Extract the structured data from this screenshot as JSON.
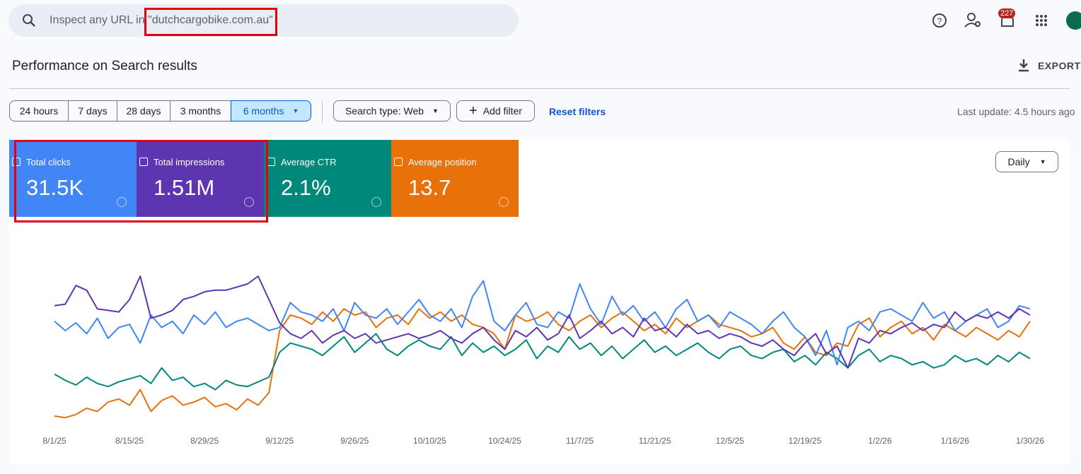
{
  "search": {
    "placeholder": "Inspect any URL in \"dutchcargobike.com.au\""
  },
  "header": {
    "notifications": "227",
    "title": "Performance on Search results",
    "export": "EXPORT"
  },
  "filters": {
    "ranges": [
      "24 hours",
      "7 days",
      "28 days",
      "3 months",
      "6 months"
    ],
    "search_type": "Search type: Web",
    "add_filter": "Add filter",
    "reset": "Reset filters",
    "last_update": "Last update: 4.5 hours ago"
  },
  "metrics": [
    "31.5K",
    "1.51M",
    "2.1%",
    "13.7"
  ],
  "granularity": "Daily",
  "chart_data": {
    "type": "line",
    "ylim": [
      0,
      100
    ],
    "categories": [
      "8/1/25",
      null,
      null,
      null,
      null,
      null,
      null,
      "8/15/25",
      null,
      null,
      null,
      null,
      null,
      null,
      "8/29/25",
      null,
      null,
      null,
      null,
      null,
      null,
      "9/12/25",
      null,
      null,
      null,
      null,
      null,
      null,
      "9/26/25",
      null,
      null,
      null,
      null,
      null,
      null,
      "10/10/25",
      null,
      null,
      null,
      null,
      null,
      null,
      "10/24/25",
      null,
      null,
      null,
      null,
      null,
      null,
      "11/7/25",
      null,
      null,
      null,
      null,
      null,
      null,
      "11/21/25",
      null,
      null,
      null,
      null,
      null,
      null,
      "12/5/25",
      null,
      null,
      null,
      null,
      null,
      null,
      "12/19/25",
      null,
      null,
      null,
      null,
      null,
      null,
      "1/2/26",
      null,
      null,
      null,
      null,
      null,
      null,
      "1/16/26",
      null,
      null,
      null,
      null,
      null,
      null,
      "1/30/26"
    ],
    "series": [
      {
        "name": "Total clicks",
        "color": "#4285f4",
        "values": [
          66,
          60,
          65,
          58,
          68,
          55,
          62,
          64,
          52,
          70,
          62,
          66,
          58,
          70,
          64,
          72,
          62,
          66,
          68,
          64,
          60,
          62,
          78,
          72,
          70,
          66,
          74,
          60,
          78,
          70,
          68,
          74,
          64,
          72,
          80,
          70,
          66,
          74,
          62,
          82,
          92,
          66,
          60,
          70,
          78,
          64,
          62,
          72,
          68,
          90,
          74,
          64,
          82,
          70,
          76,
          66,
          72,
          62,
          74,
          80,
          66,
          70,
          62,
          72,
          68,
          64,
          58,
          66,
          72,
          62,
          56,
          44,
          60,
          38,
          62,
          66,
          60,
          72,
          74,
          70,
          66,
          78,
          68,
          72,
          60,
          66,
          70,
          74,
          62,
          66,
          76,
          74
        ]
      },
      {
        "name": "Total impressions",
        "color": "#5e35b1",
        "values": [
          76,
          77,
          89,
          86,
          74,
          73,
          72,
          80,
          95,
          68,
          70,
          73,
          80,
          82,
          85,
          86,
          86,
          88,
          90,
          95,
          80,
          65,
          58,
          55,
          60,
          52,
          57,
          60,
          55,
          58,
          52,
          54,
          56,
          58,
          55,
          57,
          60,
          55,
          52,
          58,
          62,
          54,
          48,
          60,
          56,
          62,
          54,
          58,
          70,
          55,
          60,
          66,
          58,
          62,
          56,
          68,
          60,
          62,
          56,
          64,
          58,
          60,
          55,
          58,
          56,
          52,
          50,
          54,
          48,
          44,
          52,
          58,
          45,
          50,
          36,
          55,
          52,
          60,
          58,
          62,
          65,
          60,
          64,
          62,
          72,
          66,
          70,
          68,
          72,
          68,
          74,
          70
        ]
      },
      {
        "name": "Average CTR",
        "color": "#00897b",
        "values": [
          32,
          28,
          25,
          30,
          26,
          24,
          27,
          29,
          31,
          26,
          36,
          28,
          30,
          24,
          26,
          22,
          28,
          25,
          24,
          27,
          30,
          46,
          52,
          50,
          48,
          44,
          50,
          56,
          46,
          52,
          58,
          48,
          44,
          50,
          54,
          50,
          48,
          56,
          44,
          52,
          46,
          50,
          44,
          48,
          54,
          42,
          50,
          46,
          56,
          48,
          52,
          44,
          50,
          42,
          48,
          54,
          46,
          50,
          44,
          48,
          52,
          46,
          42,
          48,
          50,
          44,
          42,
          46,
          48,
          40,
          44,
          38,
          46,
          42,
          36,
          44,
          48,
          40,
          44,
          42,
          38,
          40,
          36,
          38,
          44,
          40,
          42,
          38,
          44,
          40,
          46,
          42
        ]
      },
      {
        "name": "Average position",
        "color": "#e8710a",
        "values": [
          5,
          4,
          6,
          10,
          8,
          14,
          16,
          12,
          22,
          8,
          15,
          18,
          12,
          14,
          17,
          11,
          13,
          9,
          16,
          12,
          20,
          60,
          70,
          68,
          64,
          72,
          66,
          74,
          70,
          72,
          62,
          68,
          70,
          64,
          74,
          68,
          72,
          66,
          70,
          64,
          62,
          58,
          48,
          70,
          66,
          68,
          72,
          64,
          60,
          66,
          70,
          62,
          68,
          72,
          66,
          60,
          64,
          58,
          68,
          62,
          66,
          70,
          64,
          62,
          60,
          56,
          58,
          62,
          52,
          48,
          56,
          46,
          44,
          52,
          50,
          64,
          68,
          56,
          62,
          66,
          58,
          62,
          54,
          64,
          60,
          56,
          62,
          58,
          54,
          60,
          56,
          66
        ]
      }
    ]
  }
}
